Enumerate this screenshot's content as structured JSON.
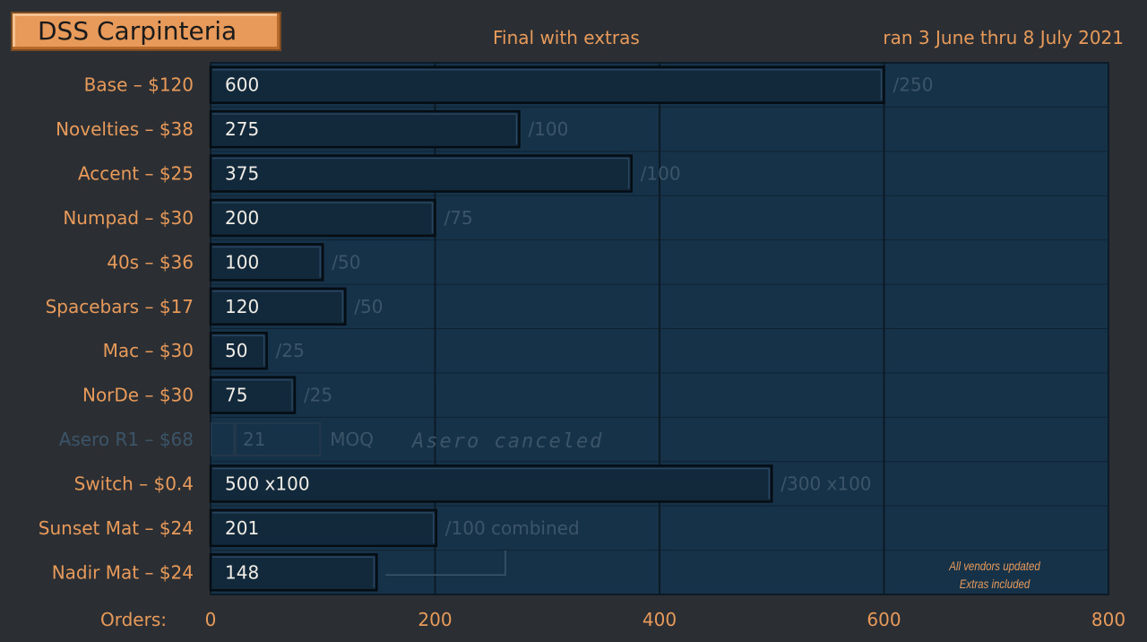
{
  "header": {
    "title": "DSS Carpinteria",
    "subtitle": "Final with extras",
    "date_range": "ran 3 June thru 8 July 2021"
  },
  "colors": {
    "background": "#2b2f33",
    "plot_background": "#163249",
    "bar_fill": "#12283b",
    "accent": "#e89a5a",
    "muted_text": "#3c5468",
    "value_text": "#f0ede6"
  },
  "chart_data": {
    "type": "bar",
    "orientation": "horizontal",
    "xlabel": "Orders:",
    "xlim": [
      0,
      800
    ],
    "xticks": [
      0,
      200,
      400,
      600,
      800
    ],
    "grid": true,
    "categories": [
      "Base – $120",
      "Novelties – $38",
      "Accent – $25",
      "Numpad – $30",
      "40s – $36",
      "Spacebars – $17",
      "Mac – $30",
      "NorDe – $30",
      "Asero R1 – $68",
      "Switch – $0.4",
      "Sunset Mat – $24",
      "Nadir Mat – $24"
    ],
    "values": [
      600,
      275,
      375,
      200,
      100,
      120,
      50,
      75,
      21,
      500,
      201,
      148
    ],
    "value_labels": [
      "600",
      "275",
      "375",
      "200",
      "100",
      "120",
      "50",
      "75",
      "21",
      "500 x100",
      "201",
      "148"
    ],
    "moq": [
      250,
      100,
      100,
      75,
      50,
      50,
      25,
      25,
      100,
      300,
      100,
      100
    ],
    "moq_labels": [
      "/250",
      "/100",
      "/100",
      "/75",
      "/50",
      "/50",
      "/25",
      "/25",
      "MOQ",
      "/300 x100",
      "/100 combined",
      ""
    ],
    "canceled": [
      false,
      false,
      false,
      false,
      false,
      false,
      false,
      false,
      true,
      false,
      false,
      false
    ],
    "annotations": [
      "Asero canceled",
      "All vendors updated",
      "Extras included"
    ]
  }
}
